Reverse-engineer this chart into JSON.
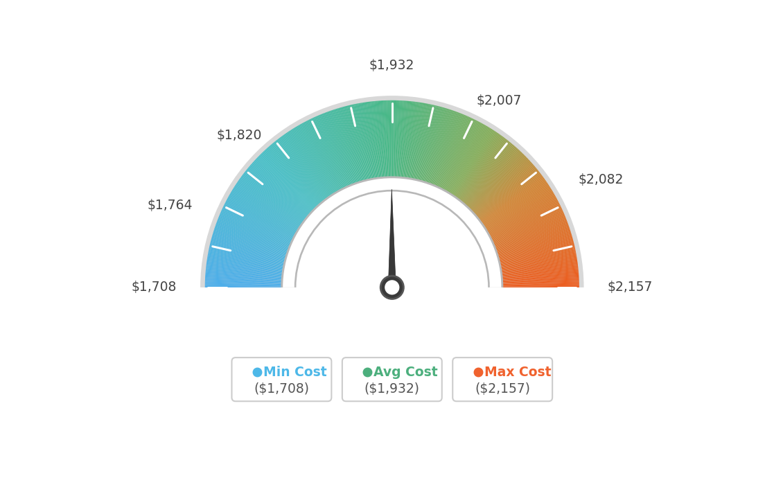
{
  "min_val": 1708,
  "avg_val": 1932,
  "max_val": 2157,
  "tick_labels": [
    "$1,708",
    "$1,764",
    "$1,820",
    "$1,932",
    "$2,007",
    "$2,082",
    "$2,157"
  ],
  "tick_values": [
    1708,
    1764,
    1820,
    1932,
    2007,
    2082,
    2157
  ],
  "legend_labels": [
    "Min Cost",
    "Avg Cost",
    "Max Cost"
  ],
  "legend_values": [
    "($1,708)",
    "($1,932)",
    "($2,157)"
  ],
  "legend_colors": [
    "#4db8e8",
    "#4caf7d",
    "#f0622e"
  ],
  "background_color": "#ffffff",
  "needle_value": 1932,
  "color_stops": [
    [
      0.0,
      [
        0.3,
        0.68,
        0.92
      ]
    ],
    [
      0.25,
      [
        0.28,
        0.75,
        0.78
      ]
    ],
    [
      0.5,
      [
        0.28,
        0.72,
        0.52
      ]
    ],
    [
      0.68,
      [
        0.52,
        0.68,
        0.35
      ]
    ],
    [
      0.8,
      [
        0.82,
        0.52,
        0.2
      ]
    ],
    [
      1.0,
      [
        0.93,
        0.36,
        0.12
      ]
    ]
  ]
}
